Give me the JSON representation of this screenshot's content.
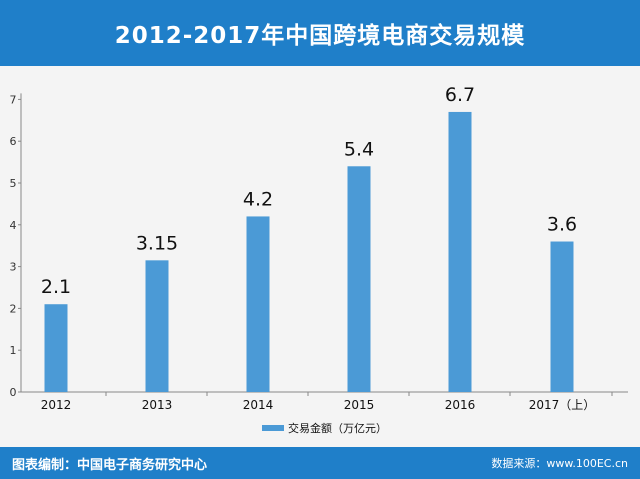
{
  "title": "2012-2017年中国跨境电商交易规模",
  "footer": {
    "source_left": "图表编制：中国电子商务研究中心",
    "source_right": "数据来源：www.100EC.cn"
  },
  "colors": {
    "header": "#1f7fc9",
    "bar": "#4b9ad6",
    "background": "#f4f4f4"
  },
  "chart_data": {
    "type": "bar",
    "categories": [
      "2012",
      "2013",
      "2014",
      "2015",
      "2016",
      "2017（上）"
    ],
    "series": [
      {
        "name": "交易金额（万亿元）",
        "values": [
          2.1,
          3.15,
          4.2,
          5.4,
          6.7,
          3.6
        ]
      }
    ],
    "data_labels": [
      "2.1",
      "3.15",
      "4.2",
      "5.4",
      "6.7",
      "3.6"
    ],
    "yticks": [
      0,
      1,
      2,
      3,
      4,
      5,
      6,
      7
    ],
    "ylim": [
      0,
      7
    ],
    "grid": false,
    "legend_position": "bottom-center"
  }
}
